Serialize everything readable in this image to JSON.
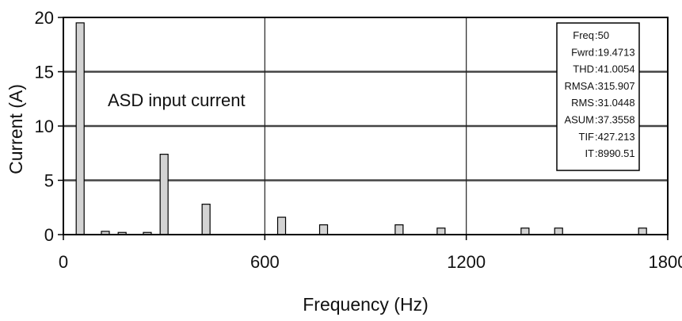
{
  "chart_data": {
    "type": "bar",
    "title": "",
    "xlabel": "Frequency (Hz)",
    "ylabel": "Current (A)",
    "xlim": [
      0,
      1800
    ],
    "ylim": [
      0,
      20
    ],
    "xticks": [
      0,
      600,
      1200,
      1800
    ],
    "yticks": [
      0,
      5,
      10,
      15,
      20
    ],
    "grid": true,
    "bar_color": "#d3d3d3",
    "annotation": "ASD input current",
    "x": [
      50,
      125,
      175,
      250,
      300,
      425,
      650,
      775,
      1000,
      1125,
      1375,
      1475,
      1725
    ],
    "values": [
      19.5,
      0.3,
      0.2,
      0.2,
      7.4,
      2.8,
      1.6,
      0.9,
      0.9,
      0.6,
      0.6,
      0.6,
      0.6
    ],
    "stats": [
      {
        "label": "Freq",
        "value": "50"
      },
      {
        "label": "Fwrd",
        "value": "19.4713"
      },
      {
        "label": "THD",
        "value": "41.0054"
      },
      {
        "label": "RMSA",
        "value": "315.907"
      },
      {
        "label": "RMS",
        "value": "31.0448"
      },
      {
        "label": "ASUM",
        "value": "37.3558"
      },
      {
        "label": "TIF",
        "value": "427.213"
      },
      {
        "label": "IT",
        "value": "8990.51"
      }
    ]
  }
}
